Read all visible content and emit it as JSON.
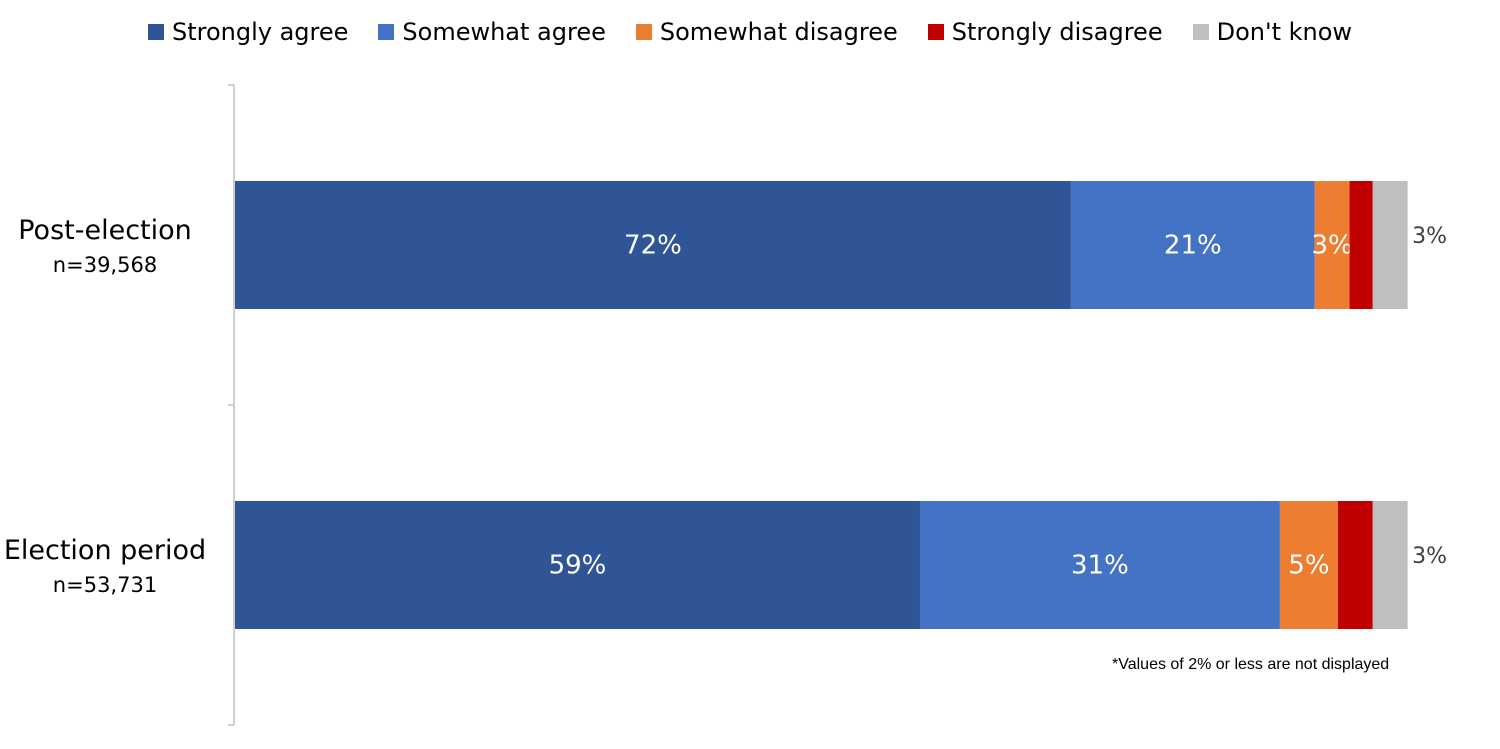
{
  "chart_data": {
    "type": "stacked_bar_horizontal",
    "categories": [
      "Post-election",
      "Election period"
    ],
    "sample_sizes": [
      "n=39,568",
      "n=53,731"
    ],
    "series": [
      {
        "name": "Strongly agree",
        "color": "#2f5597",
        "values": [
          72,
          59
        ],
        "value_labels": [
          "72%",
          "59%"
        ]
      },
      {
        "name": "Somewhat agree",
        "color": "#4472c4",
        "values": [
          21,
          31
        ],
        "value_labels": [
          "21%",
          "31%"
        ]
      },
      {
        "name": "Somewhat disagree",
        "color": "#ed7d31",
        "values": [
          3,
          5
        ],
        "value_labels": [
          "3%",
          "5%"
        ]
      },
      {
        "name": "Strongly disagree",
        "color": "#c00000",
        "values": [
          2,
          3
        ]
      },
      {
        "name": "Don't know",
        "color": "#bfbfbf",
        "values": [
          3,
          3
        ],
        "value_labels": [
          "3%",
          "3%"
        ]
      }
    ],
    "note": "*Values of 2% or less are not displayed",
    "legend": "top"
  }
}
